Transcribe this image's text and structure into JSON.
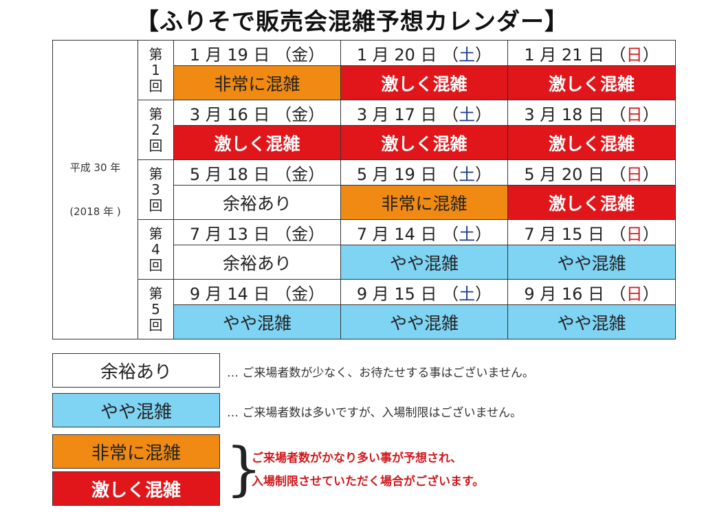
{
  "title": "【ふりそで販売会混雑予想カレンダー】",
  "era": {
    "line1": "平成 30 年",
    "line2": "(2018 年 )"
  },
  "rounds": [
    {
      "label": [
        "第",
        "1",
        "回"
      ],
      "days": [
        {
          "date": "1 月 19 日",
          "open": "（",
          "dow": "金",
          "close": "）",
          "dow_color": "plain",
          "status": "非常に混雑",
          "level": 2
        },
        {
          "date": "1 月 20 日",
          "open": "（",
          "dow": "土",
          "close": "）",
          "dow_color": "blue",
          "status": "激しく混雑",
          "level": 3
        },
        {
          "date": "1 月 21 日",
          "open": "（",
          "dow": "日",
          "close": "）",
          "dow_color": "red",
          "status": "激しく混雑",
          "level": 3
        }
      ]
    },
    {
      "label": [
        "第",
        "2",
        "回"
      ],
      "days": [
        {
          "date": "3 月 16 日",
          "open": "（",
          "dow": "金",
          "close": "）",
          "dow_color": "plain",
          "status": "激しく混雑",
          "level": 3
        },
        {
          "date": "3 月 17 日",
          "open": "（",
          "dow": "土",
          "close": "）",
          "dow_color": "blue",
          "status": "激しく混雑",
          "level": 3
        },
        {
          "date": "3 月 18 日",
          "open": "（",
          "dow": "日",
          "close": "）",
          "dow_color": "red",
          "status": "激しく混雑",
          "level": 3
        }
      ]
    },
    {
      "label": [
        "第",
        "3",
        "回"
      ],
      "days": [
        {
          "date": "5 月 18 日",
          "open": "（",
          "dow": "金",
          "close": "）",
          "dow_color": "plain",
          "status": "余裕あり",
          "level": 0
        },
        {
          "date": "5 月 19 日",
          "open": "（",
          "dow": "土",
          "close": "）",
          "dow_color": "blue",
          "status": "非常に混雑",
          "level": 2
        },
        {
          "date": "5 月 20 日",
          "open": "（",
          "dow": "日",
          "close": "）",
          "dow_color": "red",
          "status": "激しく混雑",
          "level": 3
        }
      ]
    },
    {
      "label": [
        "第",
        "4",
        "回"
      ],
      "days": [
        {
          "date": "7 月 13 日",
          "open": "（",
          "dow": "金",
          "close": "）",
          "dow_color": "plain",
          "status": "余裕あり",
          "level": 0
        },
        {
          "date": "7 月 14 日",
          "open": "（",
          "dow": "土",
          "close": "）",
          "dow_color": "blue",
          "status": "やや混雑",
          "level": 1
        },
        {
          "date": "7 月 15 日",
          "open": "（",
          "dow": "日",
          "close": "）",
          "dow_color": "red",
          "status": "やや混雑",
          "level": 1
        }
      ]
    },
    {
      "label": [
        "第",
        "5",
        "回"
      ],
      "days": [
        {
          "date": "9 月 14 日",
          "open": "（",
          "dow": "金",
          "close": "）",
          "dow_color": "plain",
          "status": "やや混雑",
          "level": 1
        },
        {
          "date": "9 月 15 日",
          "open": "（",
          "dow": "土",
          "close": "）",
          "dow_color": "blue",
          "status": "やや混雑",
          "level": 1
        },
        {
          "date": "9 月 16 日",
          "open": "（",
          "dow": "日",
          "close": "）",
          "dow_color": "red",
          "status": "やや混雑",
          "level": 1
        }
      ]
    }
  ],
  "legend": [
    {
      "label": "余裕あり",
      "level": 0,
      "desc": "… ご来場者数が少なく、お待たせする事はございません。"
    },
    {
      "label": "やや混雑",
      "level": 1,
      "desc": "… ご来場者数は多いですが、入場制限はございません。"
    },
    {
      "label": "非常に混雑",
      "level": 2
    },
    {
      "label": "激しく混雑",
      "level": 3
    }
  ],
  "legend_note": [
    "ご来場者数がかなり多い事が予想され、",
    "入場制限させていただく場合がございます。"
  ],
  "brace": "}",
  "colors": {
    "level_0": "#ffffff",
    "level_1": "#7fd3f3",
    "level_2": "#f08a12",
    "level_3": "#e0161a",
    "saturday": "#1a3c8c",
    "sunday": "#d0191c",
    "note": "#d0191c"
  }
}
